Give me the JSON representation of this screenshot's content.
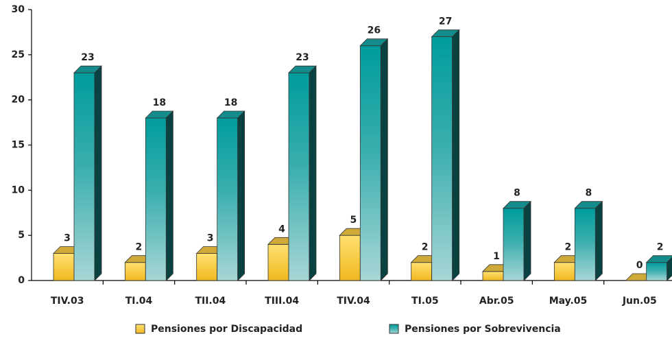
{
  "chart_data": {
    "type": "bar3d",
    "categories": [
      "TIV.03",
      "TI.04",
      "TII.04",
      "TIII.04",
      "TIV.04",
      "TI.05",
      "Abr.05",
      "May.05",
      "Jun.05"
    ],
    "series": [
      {
        "name": "Pensiones por Discapacidad",
        "color": "#f5c842",
        "values": [
          3,
          2,
          3,
          4,
          5,
          2,
          1,
          2,
          0
        ]
      },
      {
        "name": "Pensiones por Sobrevivencia",
        "color": "#1aa3a3",
        "values": [
          23,
          18,
          18,
          23,
          26,
          27,
          8,
          8,
          2
        ]
      }
    ],
    "ylim": [
      0,
      30
    ],
    "yticks": [
      0,
      5,
      10,
      15,
      20,
      25,
      30
    ],
    "legend": "bottom"
  }
}
